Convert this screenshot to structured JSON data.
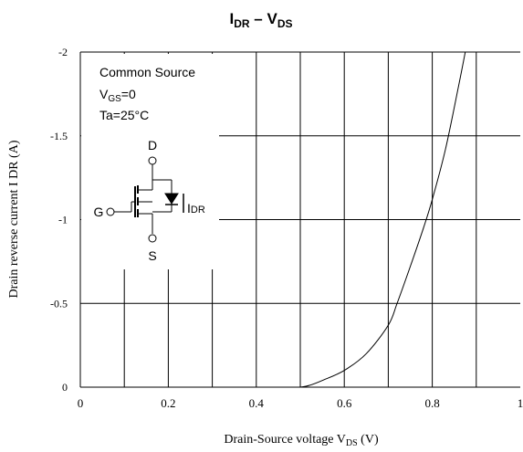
{
  "chart_data": {
    "type": "line",
    "title": {
      "main": "I",
      "main_sub": "DR",
      "sep": " – ",
      "second": "V",
      "second_sub": "DS"
    },
    "xlabel": {
      "text": "Drain-Source voltage  V",
      "sub": "DS",
      "unit": " (V)"
    },
    "ylabel": "Drain reverse current  I  DR (A)",
    "xlim": [
      0,
      1
    ],
    "ylim": [
      0,
      -2
    ],
    "x_ticks": [
      0,
      0.2,
      0.4,
      0.6,
      0.8,
      1
    ],
    "x_tick_labels": [
      "0",
      "0.2",
      "0.4",
      "0.6",
      "0.8",
      "1"
    ],
    "y_ticks": [
      0,
      -0.5,
      -1,
      -1.5,
      -2
    ],
    "y_tick_labels": [
      "0",
      "-0.5",
      "-1",
      "-1.5",
      "-2"
    ],
    "x_minor_grid": [
      0.1,
      0.3,
      0.5,
      0.7,
      0.9
    ],
    "grid": true,
    "series": [
      {
        "x": [
          0.5,
          0.52,
          0.55,
          0.6,
          0.65,
          0.7,
          0.72,
          0.75,
          0.78,
          0.8,
          0.83,
          0.86,
          0.875
        ],
        "y": [
          0,
          -0.01,
          -0.04,
          -0.1,
          -0.2,
          -0.37,
          -0.5,
          -0.72,
          -0.95,
          -1.12,
          -1.42,
          -1.8,
          -2.0
        ]
      }
    ],
    "annotations": {
      "condition_line1": "Common Source",
      "condition_line2_main": "V",
      "condition_line2_sub": "GS",
      "condition_line2_rest": "=0",
      "condition_line3": "Ta=25°C",
      "terminal_drain": "D",
      "terminal_gate": "G",
      "terminal_source": "S",
      "current_label_main": "I",
      "current_label_sub": "DR"
    }
  }
}
